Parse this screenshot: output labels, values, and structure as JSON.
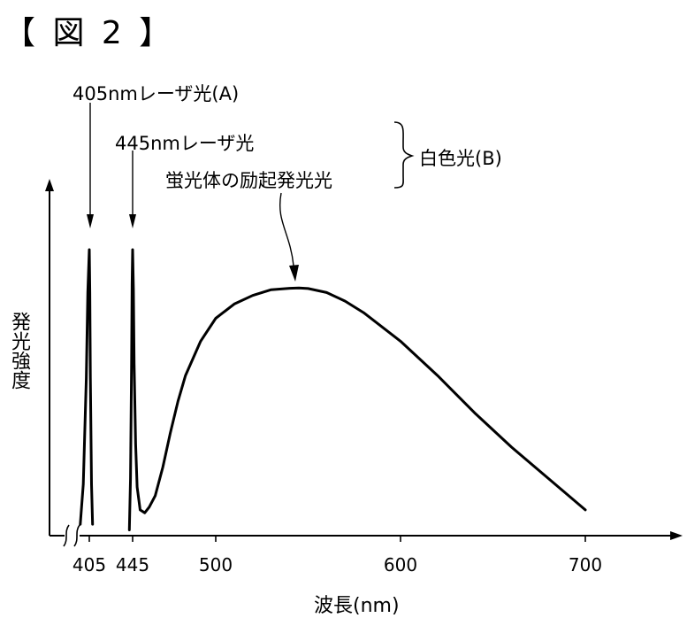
{
  "figure_label": "【 図 2 】",
  "annotations": {
    "laser405": "405nmレーザ光(A)",
    "laser445": "445nmレーザ光",
    "phosphor": "蛍光体の励起発光光",
    "white_light": "白色光(B)"
  },
  "colors": {
    "ink": "#000000",
    "background": "#ffffff"
  },
  "chart_data": {
    "type": "line",
    "title": "",
    "xlabel": "波長(nm)",
    "ylabel": "発光強度",
    "x_ticks": [
      "405",
      "445",
      "500",
      "600",
      "700"
    ],
    "xlim": [
      395,
      745
    ],
    "ylim": [
      0,
      1.0
    ],
    "grid": false,
    "axis_break": true,
    "series": [
      {
        "x": [
          402,
          403,
          404,
          404.5,
          405,
          405.5,
          406,
          407,
          408
        ],
        "y": [
          0.04,
          0.18,
          0.55,
          0.85,
          1.0,
          0.85,
          0.55,
          0.18,
          0.04
        ]
      },
      {
        "x": [
          442,
          443,
          444,
          444.5,
          445,
          445.5,
          446,
          447,
          448,
          450,
          453,
          456,
          460,
          465,
          470,
          475,
          480,
          490,
          500,
          510,
          520,
          530,
          540,
          545,
          550,
          560,
          570,
          580,
          600,
          620,
          640,
          660,
          680,
          700
        ],
        "y": [
          0.02,
          0.2,
          0.6,
          0.88,
          1.0,
          0.86,
          0.6,
          0.32,
          0.17,
          0.09,
          0.08,
          0.1,
          0.14,
          0.24,
          0.36,
          0.47,
          0.56,
          0.68,
          0.76,
          0.81,
          0.84,
          0.86,
          0.865,
          0.866,
          0.864,
          0.85,
          0.82,
          0.78,
          0.68,
          0.56,
          0.43,
          0.31,
          0.2,
          0.09
        ]
      }
    ]
  }
}
